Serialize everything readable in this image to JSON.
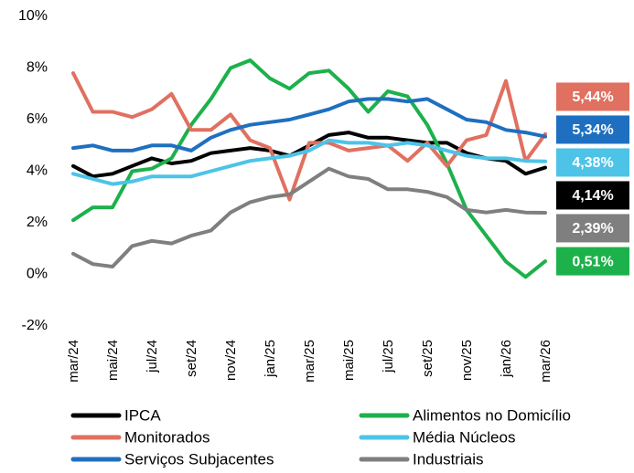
{
  "chart_data": {
    "type": "line",
    "categories": [
      "mar/24",
      null,
      "mai/24",
      null,
      "jul/24",
      null,
      "set/24",
      null,
      "nov/24",
      null,
      "jan/25",
      null,
      "mar/25",
      null,
      "mai/25",
      null,
      "jul/25",
      null,
      "set/25",
      null,
      "nov/25",
      null,
      "jan/26",
      null,
      "mar/26"
    ],
    "ylim": [
      -2,
      10
    ],
    "yticks": [
      {
        "value": -2,
        "label": "-2%"
      },
      {
        "value": 0,
        "label": "0%"
      },
      {
        "value": 2,
        "label": "2%"
      },
      {
        "value": 4,
        "label": "4%"
      },
      {
        "value": 6,
        "label": "6%"
      },
      {
        "value": 8,
        "label": "8%"
      },
      {
        "value": 10,
        "label": "10%"
      }
    ],
    "grid": false,
    "series": [
      {
        "name": "IPCA",
        "color": "#000000",
        "values": [
          4.2,
          3.8,
          3.9,
          4.2,
          4.5,
          4.3,
          4.4,
          4.7,
          4.8,
          4.9,
          4.8,
          4.6,
          5.0,
          5.4,
          5.5,
          5.3,
          5.3,
          5.2,
          5.1,
          5.1,
          4.7,
          4.5,
          4.4,
          3.9,
          4.14
        ],
        "value_labels": [
          null,
          null,
          null,
          null,
          null,
          null,
          null,
          null,
          null,
          null,
          null,
          null,
          null,
          null,
          null,
          null,
          null,
          null,
          null,
          null,
          null,
          null,
          null,
          null,
          "4,14%"
        ]
      },
      {
        "name": "Alimentos no Domicílio",
        "color": "#1db14b",
        "values": [
          2.1,
          2.6,
          2.6,
          4.0,
          4.1,
          4.5,
          5.8,
          6.8,
          8.0,
          8.3,
          7.6,
          7.2,
          7.8,
          7.9,
          7.2,
          6.3,
          7.1,
          6.9,
          5.8,
          4.3,
          2.5,
          1.5,
          0.5,
          -0.1,
          0.51
        ],
        "value_labels": [
          null,
          null,
          null,
          null,
          null,
          null,
          null,
          null,
          null,
          null,
          null,
          null,
          null,
          null,
          null,
          null,
          null,
          null,
          null,
          null,
          null,
          null,
          null,
          null,
          "0,51%"
        ]
      },
      {
        "name": "Monitorados",
        "color": "#e07060",
        "values": [
          7.8,
          6.3,
          6.3,
          6.1,
          6.4,
          7.0,
          5.6,
          5.6,
          6.2,
          5.2,
          4.9,
          2.9,
          5.1,
          5.1,
          4.8,
          4.9,
          5.0,
          4.4,
          5.1,
          4.2,
          5.2,
          5.4,
          7.5,
          4.4,
          5.44
        ],
        "value_labels": [
          null,
          null,
          null,
          null,
          null,
          null,
          null,
          null,
          null,
          null,
          null,
          null,
          null,
          null,
          null,
          null,
          null,
          null,
          null,
          null,
          null,
          null,
          null,
          null,
          "5,44%"
        ]
      },
      {
        "name": "Média Núcleos",
        "color": "#4dc3e8",
        "values": [
          3.9,
          3.7,
          3.5,
          3.6,
          3.8,
          3.8,
          3.8,
          4.0,
          4.2,
          4.4,
          4.5,
          4.6,
          4.8,
          5.2,
          5.1,
          5.1,
          5.0,
          5.1,
          5.0,
          4.8,
          4.6,
          4.5,
          4.5,
          4.4,
          4.38
        ],
        "value_labels": [
          null,
          null,
          null,
          null,
          null,
          null,
          null,
          null,
          null,
          null,
          null,
          null,
          null,
          null,
          null,
          null,
          null,
          null,
          null,
          null,
          null,
          null,
          null,
          null,
          "4,38%"
        ]
      },
      {
        "name": "Serviços Subjacentes",
        "color": "#1f6fc0",
        "values": [
          4.9,
          5.0,
          4.8,
          4.8,
          5.0,
          5.0,
          4.8,
          5.3,
          5.6,
          5.8,
          5.9,
          6.0,
          6.2,
          6.4,
          6.7,
          6.8,
          6.8,
          6.7,
          6.8,
          6.4,
          6.0,
          5.9,
          5.6,
          5.5,
          5.34
        ],
        "value_labels": [
          null,
          null,
          null,
          null,
          null,
          null,
          null,
          null,
          null,
          null,
          null,
          null,
          null,
          null,
          null,
          null,
          null,
          null,
          null,
          null,
          null,
          null,
          null,
          null,
          "5,34%"
        ]
      },
      {
        "name": "Industriais",
        "color": "#7f7f7f",
        "values": [
          0.8,
          0.4,
          0.3,
          1.1,
          1.3,
          1.2,
          1.5,
          1.7,
          2.4,
          2.8,
          3.0,
          3.1,
          3.6,
          4.1,
          3.8,
          3.7,
          3.3,
          3.3,
          3.2,
          3.0,
          2.5,
          2.4,
          2.5,
          2.4,
          2.39
        ],
        "value_labels": [
          null,
          null,
          null,
          null,
          null,
          null,
          null,
          null,
          null,
          null,
          null,
          null,
          null,
          null,
          null,
          null,
          null,
          null,
          null,
          null,
          null,
          null,
          null,
          null,
          "2,39%"
        ]
      }
    ]
  }
}
